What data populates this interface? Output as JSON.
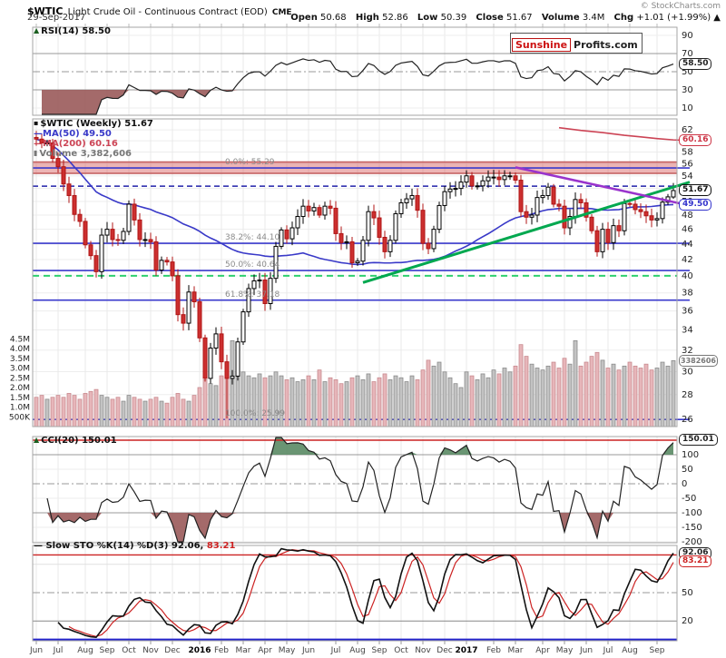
{
  "header": {
    "symbol": "$WTIC",
    "title": "Light Crude Oil - Continuous Contract (EOD)",
    "exchange": "CME",
    "copyright": "© StockCharts.com",
    "date": "29-Sep-2017",
    "quote": {
      "open_label": "Open",
      "open": "50.68",
      "high_label": "High",
      "high": "52.86",
      "low_label": "Low",
      "low": "50.39",
      "close_label": "Close",
      "close": "51.67",
      "volume_label": "Volume",
      "volume": "3.4M",
      "chg_label": "Chg",
      "chg": "+1.01 (+1.99%) ▲"
    }
  },
  "logo": {
    "part1": "Sunshine",
    "part2": "Profits.com"
  },
  "legends": {
    "rsi": "RSI(14) 58.50",
    "wtic": "$WTIC (Weekly) 51.67",
    "ma50": "MA(50) 49.50",
    "ma200": "MA(200) 60.16",
    "volume": "Volume 3,382,606",
    "cci": "CCI(20) 150.01",
    "sto": "Slow STO %K(14) %D(3) 92.06,",
    "sto_d": "83.21"
  },
  "chart_data": {
    "type": "candlestick",
    "symbol": "$WTIC",
    "timeframe": "Weekly",
    "last_values": {
      "rsi": 58.5,
      "close": 51.67,
      "ma50": 49.5,
      "ma200": 60.16,
      "volume": 3382606,
      "cci": 150.01,
      "sto_k": 92.06,
      "sto_d": 83.21
    },
    "price_ticks": [
      62,
      60,
      58,
      56,
      54,
      52,
      50,
      48,
      46,
      44,
      42,
      40,
      38,
      36,
      34,
      32,
      30,
      28,
      26
    ],
    "rsi_ticks": [
      90,
      70,
      50,
      30,
      10
    ],
    "cci_ticks": [
      100,
      50,
      0,
      -50,
      -100,
      -150,
      -200
    ],
    "sto_ticks": [
      50,
      20
    ],
    "vol_ticks": [
      {
        "v": 4.5,
        "t": "4.5M"
      },
      {
        "v": 4.0,
        "t": "4.0M"
      },
      {
        "v": 3.5,
        "t": "3.5M"
      },
      {
        "v": 3.0,
        "t": "3.0M"
      },
      {
        "v": 2.5,
        "t": "2.5M"
      },
      {
        "v": 2.0,
        "t": "2.0M"
      },
      {
        "v": 1.5,
        "t": "1.5M"
      },
      {
        "v": 1.0,
        "t": "1.0M"
      },
      {
        "v": 0.5,
        "t": "500K"
      }
    ],
    "months": [
      {
        "t": "Jun",
        "w": 0
      },
      {
        "t": "Jul",
        "w": 4
      },
      {
        "t": "Aug",
        "w": 9
      },
      {
        "t": "Sep",
        "w": 13
      },
      {
        "t": "Oct",
        "w": 17
      },
      {
        "t": "Nov",
        "w": 21
      },
      {
        "t": "Dec",
        "w": 25
      },
      {
        "t": "2016",
        "w": 30,
        "b": true
      },
      {
        "t": "Feb",
        "w": 34
      },
      {
        "t": "Mar",
        "w": 38
      },
      {
        "t": "Apr",
        "w": 42
      },
      {
        "t": "May",
        "w": 46
      },
      {
        "t": "Jun",
        "w": 50
      },
      {
        "t": "Jul",
        "w": 55
      },
      {
        "t": "Aug",
        "w": 59
      },
      {
        "t": "Sep",
        "w": 63
      },
      {
        "t": "Oct",
        "w": 67
      },
      {
        "t": "Nov",
        "w": 71
      },
      {
        "t": "Dec",
        "w": 75
      },
      {
        "t": "2017",
        "w": 79,
        "b": true
      },
      {
        "t": "Feb",
        "w": 84
      },
      {
        "t": "Mar",
        "w": 88
      },
      {
        "t": "Apr",
        "w": 93
      },
      {
        "t": "May",
        "w": 97
      },
      {
        "t": "Jun",
        "w": 101
      },
      {
        "t": "Jul",
        "w": 105
      },
      {
        "t": "Aug",
        "w": 109
      },
      {
        "t": "Sep",
        "w": 114
      }
    ],
    "closes": [
      60.3,
      59.6,
      59.6,
      56.9,
      55.5,
      52.7,
      50.9,
      48.1,
      47.1,
      43.9,
      42.5,
      40.5,
      45.2,
      46.0,
      44.6,
      44.5,
      45.7,
      49.6,
      47.3,
      44.6,
      44.6,
      44.3,
      40.7,
      41.9,
      41.7,
      40.0,
      35.6,
      34.7,
      38.1,
      37.0,
      33.2,
      29.4,
      32.2,
      33.6,
      30.9,
      29.4,
      29.6,
      32.8,
      35.9,
      38.5,
      39.4,
      39.5,
      36.8,
      39.7,
      43.7,
      45.9,
      44.7,
      46.2,
      47.8,
      49.3,
      48.6,
      49.1,
      48.0,
      49.3,
      49.0,
      45.4,
      44.2,
      44.3,
      41.6,
      41.8,
      44.5,
      48.5,
      47.6,
      44.9,
      43.0,
      44.5,
      48.2,
      49.8,
      50.4,
      50.9,
      48.7,
      44.1,
      43.4,
      46.0,
      49.4,
      51.5,
      51.9,
      52.0,
      53.0,
      54.0,
      52.4,
      52.4,
      53.2,
      53.8,
      53.8,
      53.4,
      54.0,
      54.0,
      53.3,
      48.5,
      47.7,
      48.0,
      50.6,
      50.9,
      52.2,
      49.6,
      49.3,
      46.2,
      47.8,
      50.3,
      49.8,
      47.7,
      45.8,
      43.0,
      46.0,
      44.2,
      46.5,
      45.8,
      49.7,
      49.6,
      48.8,
      48.5,
      47.9,
      47.3,
      47.5,
      49.9,
      50.7,
      51.67
    ],
    "volumes": [
      1.5,
      1.6,
      1.4,
      1.5,
      1.6,
      1.5,
      1.7,
      1.6,
      1.4,
      1.7,
      1.8,
      1.9,
      1.6,
      1.5,
      1.4,
      1.5,
      1.3,
      1.6,
      1.5,
      1.4,
      1.3,
      1.4,
      1.5,
      1.3,
      1.2,
      1.5,
      1.7,
      1.4,
      1.3,
      1.6,
      2.0,
      2.4,
      2.2,
      2.1,
      2.6,
      3.3,
      4.4,
      3.0,
      2.8,
      2.6,
      2.5,
      2.7,
      2.5,
      2.6,
      2.8,
      2.6,
      2.4,
      2.5,
      2.3,
      2.4,
      2.6,
      2.4,
      2.9,
      2.3,
      2.5,
      2.4,
      2.2,
      2.3,
      2.5,
      2.6,
      2.4,
      2.7,
      2.3,
      2.5,
      2.7,
      2.4,
      2.6,
      2.5,
      2.3,
      2.6,
      2.4,
      2.9,
      3.4,
      3.1,
      3.3,
      2.8,
      2.5,
      2.2,
      2.0,
      2.8,
      2.6,
      2.4,
      2.7,
      2.5,
      2.9,
      2.7,
      3.0,
      2.8,
      3.1,
      4.2,
      3.6,
      3.2,
      3.0,
      2.9,
      3.1,
      3.3,
      3.0,
      3.5,
      3.2,
      4.4,
      3.1,
      3.3,
      3.6,
      3.8,
      3.4,
      3.0,
      3.2,
      2.9,
      3.1,
      3.3,
      3.1,
      3.0,
      3.2,
      2.9,
      3.0,
      3.3,
      3.1,
      3.38
    ],
    "last_candle": {
      "o": 50.68,
      "h": 52.86,
      "l": 50.39,
      "c": 51.67
    },
    "low_override": {
      "index": 35,
      "low": 26.06
    },
    "ma200_anchors": [
      [
        96,
        62.4
      ],
      [
        100,
        61.9
      ],
      [
        104,
        61.5
      ],
      [
        108,
        61.0
      ],
      [
        111,
        60.7
      ],
      [
        114,
        60.4
      ],
      [
        117,
        60.16
      ],
      [
        120,
        60.05
      ]
    ],
    "fib": [
      {
        "label": "0.0%: 55.29",
        "value": 55.29
      },
      {
        "label": "38.2%: 44.10",
        "value": 44.1
      },
      {
        "label": "50.0%: 40.64",
        "value": 40.64
      },
      {
        "label": "61.8%: 37.18",
        "value": 37.18
      },
      {
        "label": "100.0%: 25.99",
        "value": 25.99
      }
    ],
    "annotations": {
      "zone": {
        "top": 56.3,
        "bottom": 54.4,
        "fill": "rgba(214,92,92,0.45)",
        "edge": "#c25b5b"
      },
      "hlines_price": [
        {
          "value": 52.35,
          "color": "#2222aa",
          "dash": "6,4",
          "width": 1.5
        },
        {
          "value": 40.0,
          "color": "#2fd06f",
          "dash": "7,5",
          "width": 2
        }
      ],
      "fib_color": "#3a3acc",
      "trendlines": [
        {
          "w1": 60,
          "p1": 39.2,
          "w2": 120,
          "p2": 53.0,
          "color": "#00a84f",
          "width": 3
        },
        {
          "w1": 88,
          "p1": 55.4,
          "w2": 120.5,
          "p2": 49.3,
          "color": "#9933cc",
          "width": 2.5
        }
      ],
      "cci_line": {
        "value": 150,
        "color": "#cc2222"
      },
      "sto_line": {
        "value": 90,
        "color": "#cc2222"
      },
      "sto_bottom_line": {
        "color": "#2222cc"
      }
    },
    "label_boxes": [
      {
        "panel": "rsi",
        "value": 58.5,
        "text": "58.50",
        "color": "#222"
      },
      {
        "panel": "price",
        "value": 60.16,
        "text": "60.16",
        "color": "#cc3344"
      },
      {
        "panel": "price",
        "value": 51.67,
        "text": "51.67",
        "color": "#111"
      },
      {
        "panel": "price",
        "value": 49.5,
        "text": "49.50",
        "color": "#3333cc"
      },
      {
        "panel": "vol",
        "value": 3.38,
        "text": "3382606",
        "color": "#777",
        "small": true
      },
      {
        "panel": "cci",
        "value": 150.01,
        "text": "150.01",
        "color": "#222"
      },
      {
        "panel": "sto",
        "value": 92.06,
        "text": "92.06",
        "color": "#222"
      },
      {
        "panel": "sto",
        "value": 83.21,
        "text": "83.21",
        "color": "#cc2222"
      }
    ]
  }
}
